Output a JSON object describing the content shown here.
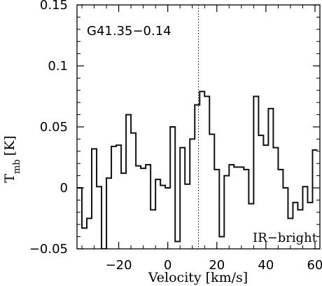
{
  "chart_data": {
    "type": "line",
    "title": "",
    "xlabel": "Velocity [km/s]",
    "ylabel": {
      "main": "T",
      "sub": "mb",
      "unit": "[K]"
    },
    "xlim": [
      -37,
      62
    ],
    "ylim": [
      -0.05,
      0.15
    ],
    "xticks": [
      -20,
      0,
      20,
      40,
      60
    ],
    "yticks": [
      -0.05,
      0,
      0.05,
      0.1,
      0.15
    ],
    "xtick_labels": [
      "−20",
      "0",
      "20",
      "40",
      "60"
    ],
    "ytick_labels": [
      "−0.05",
      "0",
      "0.05",
      "0.1",
      "0.15"
    ],
    "reference_line_x": 12.5,
    "annotations": {
      "source": "G41.35−0.14",
      "classification": "IR−bright"
    },
    "series": [
      {
        "style": "histogram",
        "x": [
          -36,
          -34,
          -32,
          -30,
          -28,
          -26,
          -24,
          -22,
          -20,
          -18,
          -16,
          -14,
          -12,
          -10,
          -8,
          -6,
          -4,
          -2,
          0,
          2,
          4,
          6,
          8,
          10,
          12,
          14,
          16,
          18,
          20,
          22,
          24,
          26,
          28,
          30,
          32,
          34,
          36,
          38,
          40,
          42,
          44,
          46,
          48,
          50,
          52,
          54,
          56,
          58,
          60
        ],
        "y": [
          0.0,
          -0.033,
          -0.025,
          0.032,
          0.001,
          -0.05,
          0.008,
          0.034,
          0.035,
          0.012,
          0.06,
          0.045,
          0.018,
          0.016,
          0.019,
          -0.018,
          0.007,
          0.002,
          0.0,
          0.05,
          -0.044,
          0.033,
          0.003,
          0.04,
          0.068,
          0.079,
          0.075,
          0.044,
          0.015,
          -0.04,
          0.01,
          0.019,
          0.017,
          0.017,
          0.015,
          -0.013,
          0.075,
          0.043,
          0.035,
          0.065,
          0.033,
          0.015,
          0.0,
          -0.025,
          -0.012,
          -0.018,
          0.001,
          -0.012,
          0.031
        ]
      }
    ]
  }
}
